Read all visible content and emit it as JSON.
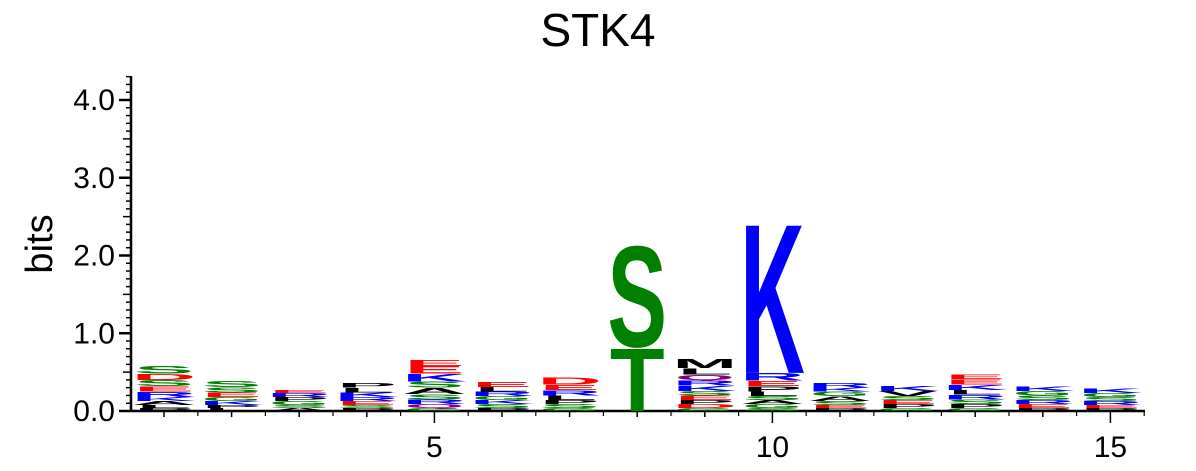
{
  "chart_data": {
    "type": "sequence-logo",
    "title": "STK4",
    "ylabel": "bits",
    "xlabel": "",
    "ylim": [
      0,
      4.3
    ],
    "y_ticks": [
      {
        "value": 0.0,
        "label": "0.0"
      },
      {
        "value": 1.0,
        "label": "1.0"
      },
      {
        "value": 2.0,
        "label": "2.0"
      },
      {
        "value": 3.0,
        "label": "3.0"
      },
      {
        "value": 4.0,
        "label": "4.0"
      }
    ],
    "x_ticks": [
      {
        "value": 5,
        "label": "5"
      },
      {
        "value": 10,
        "label": "10"
      },
      {
        "value": 15,
        "label": "15"
      }
    ],
    "xlim": [
      0.5,
      15.5
    ],
    "colors": {
      "acidic": "#ff0000",
      "basic": "#0000ff",
      "polar": "#008000",
      "hydrophobic": "#000000",
      "amide": "#800080"
    },
    "positions": [
      {
        "pos": 1,
        "stack": [
          [
            "P",
            0.04,
            "hydrophobic"
          ],
          [
            "L",
            0.04,
            "hydrophobic"
          ],
          [
            "A",
            0.05,
            "hydrophobic"
          ],
          [
            "K",
            0.05,
            "basic"
          ],
          [
            "R",
            0.07,
            "basic"
          ],
          [
            "E",
            0.07,
            "acidic"
          ],
          [
            "S",
            0.08,
            "polar"
          ],
          [
            "D",
            0.08,
            "acidic"
          ],
          [
            "S",
            0.1,
            "polar"
          ]
        ]
      },
      {
        "pos": 2,
        "stack": [
          [
            "L",
            0.04,
            "hydrophobic"
          ],
          [
            "P",
            0.04,
            "hydrophobic"
          ],
          [
            "K",
            0.05,
            "basic"
          ],
          [
            "G",
            0.05,
            "polar"
          ],
          [
            "E",
            0.06,
            "acidic"
          ],
          [
            "S",
            0.07,
            "polar"
          ],
          [
            "S",
            0.08,
            "polar"
          ]
        ]
      },
      {
        "pos": 3,
        "stack": [
          [
            "A",
            0.04,
            "hydrophobic"
          ],
          [
            "S",
            0.04,
            "polar"
          ],
          [
            "G",
            0.05,
            "polar"
          ],
          [
            "P",
            0.05,
            "hydrophobic"
          ],
          [
            "R",
            0.05,
            "basic"
          ],
          [
            "E",
            0.04,
            "acidic"
          ]
        ]
      },
      {
        "pos": 4,
        "stack": [
          [
            "P",
            0.04,
            "hydrophobic"
          ],
          [
            "S",
            0.04,
            "polar"
          ],
          [
            "E",
            0.05,
            "acidic"
          ],
          [
            "R",
            0.05,
            "basic"
          ],
          [
            "K",
            0.06,
            "basic"
          ],
          [
            "L",
            0.06,
            "hydrophobic"
          ],
          [
            "P",
            0.06,
            "hydrophobic"
          ]
        ]
      },
      {
        "pos": 5,
        "stack": [
          [
            "G",
            0.04,
            "polar"
          ],
          [
            "Q",
            0.05,
            "amide"
          ],
          [
            "R",
            0.06,
            "basic"
          ],
          [
            "S",
            0.07,
            "polar"
          ],
          [
            "A",
            0.08,
            "hydrophobic"
          ],
          [
            "S",
            0.08,
            "polar"
          ],
          [
            "K",
            0.1,
            "basic"
          ],
          [
            "E",
            0.1,
            "acidic"
          ],
          [
            "E",
            0.08,
            "acidic"
          ]
        ]
      },
      {
        "pos": 6,
        "stack": [
          [
            "P",
            0.04,
            "hydrophobic"
          ],
          [
            "S",
            0.05,
            "polar"
          ],
          [
            "K",
            0.05,
            "basic"
          ],
          [
            "G",
            0.05,
            "polar"
          ],
          [
            "R",
            0.06,
            "basic"
          ],
          [
            "L",
            0.06,
            "hydrophobic"
          ],
          [
            "E",
            0.07,
            "acidic"
          ]
        ]
      },
      {
        "pos": 7,
        "stack": [
          [
            "G",
            0.04,
            "polar"
          ],
          [
            "S",
            0.05,
            "polar"
          ],
          [
            "P",
            0.05,
            "hydrophobic"
          ],
          [
            "L",
            0.06,
            "hydrophobic"
          ],
          [
            "R",
            0.07,
            "basic"
          ],
          [
            "E",
            0.07,
            "acidic"
          ],
          [
            "D",
            0.09,
            "acidic"
          ]
        ]
      },
      {
        "pos": 8,
        "stack": [
          [
            "T",
            0.83,
            "polar"
          ],
          [
            "S",
            1.33,
            "polar"
          ]
        ]
      },
      {
        "pos": 9,
        "stack": [
          [
            "G",
            0.04,
            "polar"
          ],
          [
            "D",
            0.05,
            "acidic"
          ],
          [
            "P",
            0.05,
            "hydrophobic"
          ],
          [
            "E",
            0.06,
            "acidic"
          ],
          [
            "S",
            0.06,
            "polar"
          ],
          [
            "K",
            0.07,
            "basic"
          ],
          [
            "R",
            0.07,
            "basic"
          ],
          [
            "Q",
            0.07,
            "amide"
          ],
          [
            "L",
            0.08,
            "hydrophobic"
          ],
          [
            "M",
            0.12,
            "hydrophobic"
          ]
        ]
      },
      {
        "pos": 10,
        "stack": [
          [
            "S",
            0.04,
            "polar"
          ],
          [
            "G",
            0.05,
            "polar"
          ],
          [
            "A",
            0.05,
            "hydrophobic"
          ],
          [
            "S",
            0.05,
            "polar"
          ],
          [
            "L",
            0.06,
            "hydrophobic"
          ],
          [
            "P",
            0.07,
            "hydrophobic"
          ],
          [
            "E",
            0.07,
            "acidic"
          ],
          [
            "R",
            0.1,
            "basic"
          ],
          [
            "K",
            1.97,
            "basic"
          ]
        ]
      },
      {
        "pos": 11,
        "stack": [
          [
            "P",
            0.04,
            "hydrophobic"
          ],
          [
            "E",
            0.04,
            "acidic"
          ],
          [
            "S",
            0.05,
            "polar"
          ],
          [
            "A",
            0.06,
            "hydrophobic"
          ],
          [
            "G",
            0.06,
            "polar"
          ],
          [
            "K",
            0.05,
            "basic"
          ],
          [
            "R",
            0.06,
            "basic"
          ]
        ]
      },
      {
        "pos": 12,
        "stack": [
          [
            "G",
            0.04,
            "polar"
          ],
          [
            "P",
            0.05,
            "hydrophobic"
          ],
          [
            "E",
            0.05,
            "acidic"
          ],
          [
            "S",
            0.05,
            "polar"
          ],
          [
            "V",
            0.07,
            "hydrophobic"
          ],
          [
            "K",
            0.07,
            "basic"
          ]
        ]
      },
      {
        "pos": 13,
        "stack": [
          [
            "G",
            0.04,
            "polar"
          ],
          [
            "P",
            0.05,
            "hydrophobic"
          ],
          [
            "S",
            0.06,
            "polar"
          ],
          [
            "R",
            0.06,
            "basic"
          ],
          [
            "L",
            0.06,
            "hydrophobic"
          ],
          [
            "K",
            0.07,
            "basic"
          ],
          [
            "E",
            0.07,
            "acidic"
          ],
          [
            "E",
            0.06,
            "acidic"
          ]
        ]
      },
      {
        "pos": 14,
        "stack": [
          [
            "P",
            0.04,
            "hydrophobic"
          ],
          [
            "E",
            0.05,
            "acidic"
          ],
          [
            "R",
            0.05,
            "basic"
          ],
          [
            "S",
            0.06,
            "polar"
          ],
          [
            "G",
            0.06,
            "polar"
          ],
          [
            "K",
            0.06,
            "basic"
          ]
        ]
      },
      {
        "pos": 15,
        "stack": [
          [
            "P",
            0.04,
            "hydrophobic"
          ],
          [
            "E",
            0.04,
            "acidic"
          ],
          [
            "R",
            0.05,
            "basic"
          ],
          [
            "S",
            0.05,
            "polar"
          ],
          [
            "G",
            0.05,
            "polar"
          ],
          [
            "K",
            0.06,
            "basic"
          ]
        ]
      }
    ]
  }
}
